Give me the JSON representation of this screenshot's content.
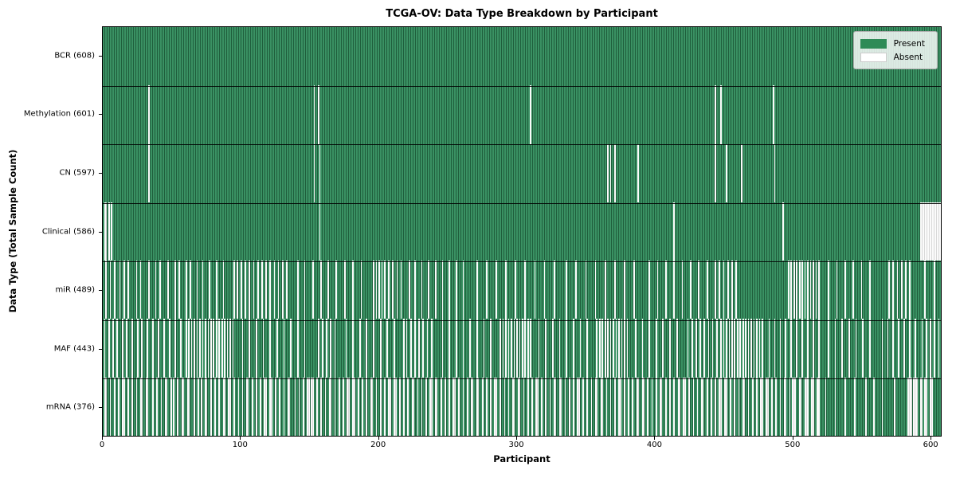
{
  "chart_data": {
    "type": "heatmap",
    "title": "TCGA-OV: Data Type Breakdown by Participant",
    "xlabel": "Participant",
    "ylabel": "Data Type (Total Sample Count)",
    "x_ticks": [
      0,
      100,
      200,
      300,
      400,
      500,
      600
    ],
    "xlim": [
      0,
      608
    ],
    "n_participants": 608,
    "grid": false,
    "legend_position": "upper right",
    "legend": [
      {
        "label": "Present",
        "color": "#2e8b57"
      },
      {
        "label": "Absent",
        "color": "#ffffff"
      }
    ],
    "colors": {
      "present": "#2e8b57",
      "present_edge": "#1f5e3c",
      "absent": "#fbfbfb",
      "absent_edge": "#d8d8d8",
      "legend_bg": "#eef0ee",
      "axis": "#000000"
    },
    "rows": [
      {
        "label": "BCR (608)",
        "data_type": "BCR",
        "present_count": 608,
        "absent_count": 0,
        "absent": []
      },
      {
        "label": "Methylation (601)",
        "data_type": "Methylation",
        "present_count": 601,
        "absent_count": 7,
        "absent": [
          33,
          153,
          156,
          310,
          444,
          448,
          486
        ]
      },
      {
        "label": "CN (597)",
        "data_type": "CN",
        "present_count": 597,
        "absent_count": 11,
        "absent": [
          33,
          153,
          157,
          366,
          368,
          371,
          388,
          444,
          452,
          463,
          487
        ]
      },
      {
        "label": "Clinical (586)",
        "data_type": "Clinical",
        "present_count": 586,
        "absent_count": 22,
        "absent": [
          [
            1,
            2
          ],
          4,
          6,
          157,
          414,
          493,
          [
            593,
            607
          ]
        ]
      },
      {
        "label": "miR (489)",
        "data_type": "miR",
        "present_count": 489,
        "absent_count": 119,
        "absent": [
          2,
          5,
          8,
          12,
          15,
          18,
          24,
          27,
          33,
          38,
          41,
          47,
          52,
          55,
          60,
          63,
          68,
          72,
          77,
          82,
          87,
          95,
          97,
          100,
          103,
          106,
          109,
          112,
          115,
          118,
          121,
          124,
          127,
          130,
          133,
          141,
          146,
          152,
          158,
          163,
          169,
          175,
          181,
          187,
          196,
          198,
          200,
          202,
          204,
          207,
          210,
          213,
          216,
          222,
          226,
          231,
          236,
          241,
          246,
          251,
          256,
          261,
          271,
          278,
          285,
          292,
          299,
          306,
          313,
          320,
          327,
          336,
          343,
          350,
          357,
          364,
          371,
          378,
          385,
          396,
          402,
          408,
          414,
          420,
          426,
          432,
          438,
          444,
          447,
          450,
          453,
          456,
          459,
          497,
          499,
          501,
          503,
          505,
          507,
          509,
          511,
          513,
          515,
          517,
          519,
          526,
          532,
          538,
          544,
          550,
          556,
          570,
          573,
          576,
          579,
          582,
          585,
          596,
          603
        ]
      },
      {
        "label": "MAF (443)",
        "data_type": "MAF",
        "present_count": 443,
        "absent_count": 165,
        "absent": [
          1,
          4,
          7,
          10,
          14,
          17,
          21,
          25,
          28,
          32,
          36,
          40,
          44,
          48,
          52,
          56,
          60,
          62,
          64,
          66,
          68,
          70,
          72,
          74,
          76,
          78,
          80,
          82,
          84,
          86,
          88,
          90,
          92,
          94,
          101,
          106,
          111,
          116,
          121,
          126,
          131,
          136,
          141,
          146,
          156,
          159,
          162,
          165,
          168,
          176,
          181,
          186,
          191,
          196,
          201,
          206,
          211,
          218,
          220,
          223,
          226,
          229,
          232,
          235,
          238,
          246,
          251,
          256,
          261,
          266,
          271,
          276,
          281,
          288,
          290,
          292,
          294,
          296,
          298,
          300,
          302,
          304,
          306,
          308,
          310,
          316,
          321,
          326,
          331,
          336,
          341,
          346,
          351,
          358,
          360,
          362,
          364,
          366,
          368,
          370,
          372,
          374,
          376,
          378,
          380,
          386,
          391,
          396,
          401,
          406,
          411,
          416,
          424,
          427,
          430,
          433,
          436,
          439,
          442,
          445,
          448,
          450,
          452,
          454,
          456,
          458,
          460,
          462,
          464,
          466,
          468,
          470,
          472,
          474,
          476,
          478,
          483,
          487,
          491,
          495,
          499,
          503,
          507,
          511,
          515,
          519,
          526,
          531,
          536,
          541,
          546,
          551,
          556,
          565,
          569,
          573,
          577,
          581,
          585,
          589,
          594,
          597,
          600,
          603,
          606
        ]
      },
      {
        "label": "mRNA (376)",
        "data_type": "mRNA",
        "present_count": 376,
        "absent_count": 232,
        "absent": [
          [
            1,
            2
          ],
          5,
          8,
          11,
          [
            14,
            15
          ],
          18,
          21,
          24,
          [
            27,
            28
          ],
          [
            31,
            32
          ],
          36,
          39,
          42,
          [
            45,
            46
          ],
          49,
          51,
          54,
          [
            57,
            58
          ],
          [
            61,
            62
          ],
          66,
          69,
          71,
          [
            74,
            75
          ],
          78,
          81,
          84,
          [
            87,
            88
          ],
          [
            91,
            92
          ],
          95,
          98,
          101,
          [
            104,
            105
          ],
          108,
          111,
          114,
          [
            117,
            118
          ],
          [
            121,
            122
          ],
          125,
          128,
          131,
          [
            134,
            135
          ],
          139,
          142,
          145,
          [
            148,
            149
          ],
          [
            151,
            152
          ],
          155,
          158,
          161,
          [
            164,
            165
          ],
          168,
          171,
          174,
          [
            177,
            178
          ],
          [
            181,
            182
          ],
          185,
          188,
          191,
          [
            194,
            195
          ],
          198,
          201,
          204,
          [
            207,
            208
          ],
          [
            211,
            212
          ],
          215,
          218,
          221,
          [
            224,
            225
          ],
          228,
          231,
          234,
          [
            237,
            238
          ],
          [
            241,
            242
          ],
          245,
          248,
          251,
          [
            254,
            255
          ],
          258,
          261,
          264,
          [
            267,
            268
          ],
          [
            271,
            272
          ],
          275,
          278,
          281,
          [
            284,
            285
          ],
          288,
          291,
          294,
          [
            297,
            298
          ],
          [
            301,
            302
          ],
          305,
          308,
          311,
          [
            314,
            315
          ],
          318,
          321,
          324,
          [
            327,
            328
          ],
          [
            331,
            332
          ],
          335,
          338,
          341,
          [
            344,
            345
          ],
          348,
          351,
          354,
          [
            357,
            358
          ],
          [
            361,
            362
          ],
          365,
          368,
          371,
          [
            374,
            375
          ],
          378,
          381,
          384,
          [
            387,
            388
          ],
          [
            391,
            392
          ],
          395,
          398,
          401,
          [
            404,
            405
          ],
          408,
          411,
          414,
          [
            417,
            418
          ],
          [
            421,
            422
          ],
          425,
          428,
          431,
          [
            434,
            435
          ],
          438,
          441,
          444,
          [
            447,
            448
          ],
          [
            451,
            452
          ],
          455,
          458,
          461,
          [
            464,
            465
          ],
          468,
          471,
          474,
          [
            477,
            478
          ],
          [
            481,
            482
          ],
          485,
          488,
          491,
          [
            494,
            495
          ],
          498,
          [
            500,
            502
          ],
          [
            505,
            506
          ],
          [
            509,
            511
          ],
          [
            514,
            515
          ],
          518,
          519,
          524,
          531,
          538,
          545,
          553,
          559,
          565,
          574,
          [
            584,
            586
          ],
          [
            588,
            590
          ],
          [
            593,
            594
          ],
          [
            596,
            597
          ],
          [
            600,
            601
          ]
        ]
      }
    ]
  }
}
